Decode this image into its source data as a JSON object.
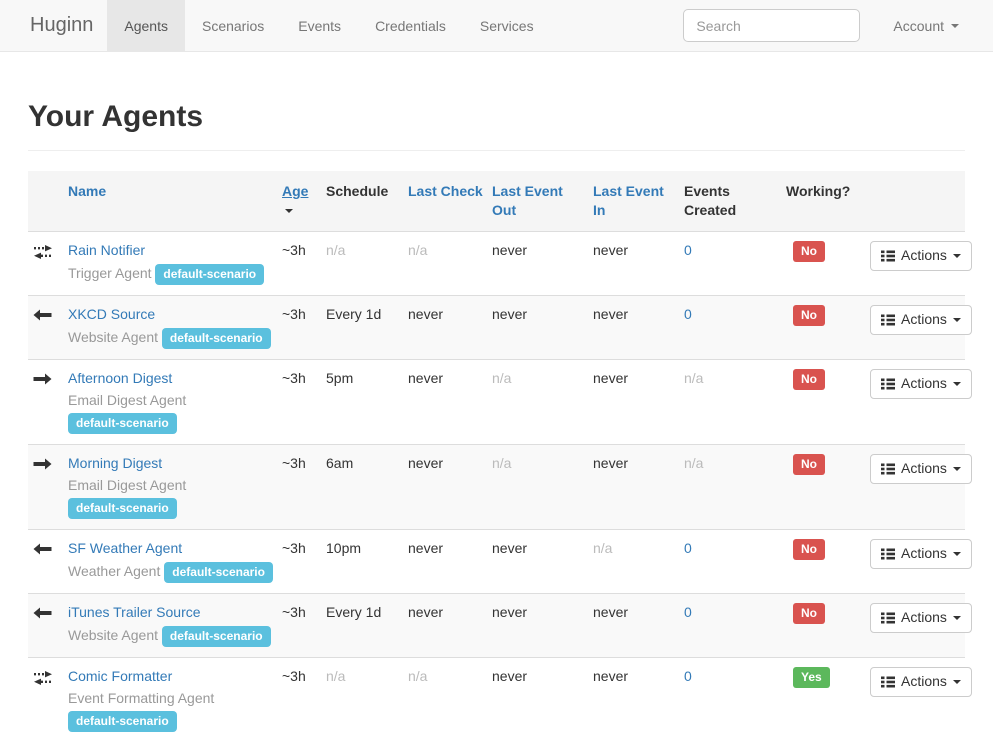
{
  "navbar": {
    "brand": "Huginn",
    "items": [
      {
        "label": "Agents",
        "active": true
      },
      {
        "label": "Scenarios",
        "active": false
      },
      {
        "label": "Events",
        "active": false
      },
      {
        "label": "Credentials",
        "active": false
      },
      {
        "label": "Services",
        "active": false
      }
    ],
    "search": {
      "placeholder": "Search"
    },
    "account": {
      "label": "Account"
    }
  },
  "page": {
    "title": "Your Agents"
  },
  "table": {
    "columns": [
      {
        "key": "icon",
        "label": ""
      },
      {
        "key": "name",
        "label": "Name",
        "link": true
      },
      {
        "key": "age",
        "label": "Age",
        "link": true,
        "sorted": "desc"
      },
      {
        "key": "schedule",
        "label": "Schedule",
        "link": false
      },
      {
        "key": "last_check",
        "label": "Last Check",
        "link": true
      },
      {
        "key": "last_event_out",
        "label": "Last Event Out",
        "link": true
      },
      {
        "key": "last_event_in",
        "label": "Last Event In",
        "link": true
      },
      {
        "key": "events_created",
        "label": "Events Created",
        "link": false
      },
      {
        "key": "working",
        "label": "Working?",
        "link": false
      },
      {
        "key": "actions",
        "label": ""
      }
    ],
    "actions_label": "Actions",
    "rows": [
      {
        "direction": "both",
        "name": "Rain Notifier",
        "type": "Trigger Agent",
        "scenario": "default-scenario",
        "age": "~3h",
        "schedule": "n/a",
        "last_check": "n/a",
        "last_event_out": "never",
        "last_event_in": "never",
        "events_created": "0",
        "working": "No"
      },
      {
        "direction": "left",
        "name": "XKCD Source",
        "type": "Website Agent",
        "scenario": "default-scenario",
        "age": "~3h",
        "schedule": "Every 1d",
        "last_check": "never",
        "last_event_out": "never",
        "last_event_in": "never",
        "events_created": "0",
        "working": "No"
      },
      {
        "direction": "right",
        "name": "Afternoon Digest",
        "type": "Email Digest Agent",
        "scenario": "default-scenario",
        "age": "~3h",
        "schedule": "5pm",
        "last_check": "never",
        "last_event_out": "n/a",
        "last_event_in": "never",
        "events_created": "n/a",
        "working": "No"
      },
      {
        "direction": "right",
        "name": "Morning Digest",
        "type": "Email Digest Agent",
        "scenario": "default-scenario",
        "age": "~3h",
        "schedule": "6am",
        "last_check": "never",
        "last_event_out": "n/a",
        "last_event_in": "never",
        "events_created": "n/a",
        "working": "No"
      },
      {
        "direction": "left",
        "name": "SF Weather Agent",
        "type": "Weather Agent",
        "scenario": "default-scenario",
        "age": "~3h",
        "schedule": "10pm",
        "last_check": "never",
        "last_event_out": "never",
        "last_event_in": "n/a",
        "events_created": "0",
        "working": "No"
      },
      {
        "direction": "left",
        "name": "iTunes Trailer Source",
        "type": "Website Agent",
        "scenario": "default-scenario",
        "age": "~3h",
        "schedule": "Every 1d",
        "last_check": "never",
        "last_event_out": "never",
        "last_event_in": "never",
        "events_created": "0",
        "working": "No"
      },
      {
        "direction": "both",
        "name": "Comic Formatter",
        "type": "Event Formatting Agent",
        "scenario": "default-scenario",
        "age": "~3h",
        "schedule": "n/a",
        "last_check": "n/a",
        "last_event_out": "never",
        "last_event_in": "never",
        "events_created": "0",
        "working": "Yes"
      }
    ]
  },
  "colors": {
    "link": "#337ab7",
    "scenario_badge": "#5bc0de",
    "working_no": "#d9534f",
    "working_yes": "#5cb85c",
    "muted_text": "#bbbbbb",
    "navbar_bg": "#f8f8f8",
    "navbar_border": "#e7e7e7",
    "thead_bg": "#f5f5f5",
    "stripe_bg": "#f9f9f9"
  }
}
